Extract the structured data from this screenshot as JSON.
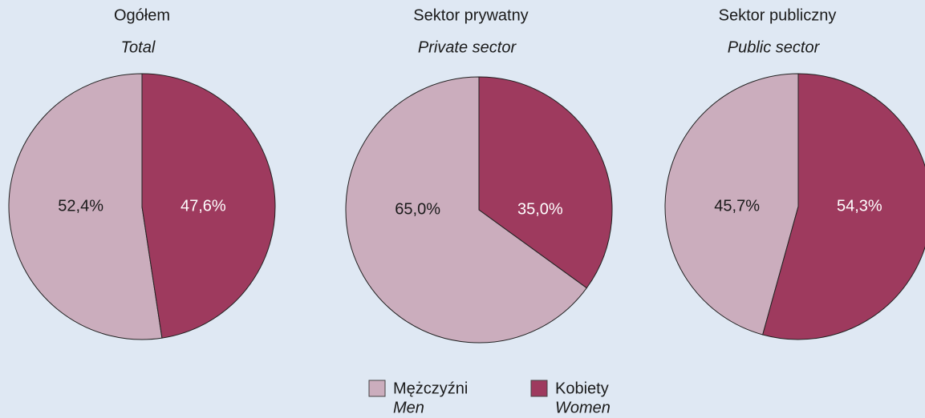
{
  "chart_data": [
    {
      "type": "pie",
      "title": "Ogółem",
      "subtitle": "Total",
      "values": [
        52.4,
        47.6
      ],
      "value_labels": [
        "52,4%",
        "47,6%"
      ]
    },
    {
      "type": "pie",
      "title": "Sektor prywatny",
      "subtitle": "Private sector",
      "values": [
        65.0,
        35.0
      ],
      "value_labels": [
        "65,0%",
        "35,0%"
      ]
    },
    {
      "type": "pie",
      "title": "Sektor publiczny",
      "subtitle": "Public sector",
      "values": [
        45.7,
        54.3
      ],
      "value_labels": [
        "45,7%",
        "54,3%"
      ]
    }
  ],
  "legend": {
    "items": [
      {
        "name": "Mężczyźni",
        "name_en": "Men",
        "color": "#cbadbd"
      },
      {
        "name": "Kobiety",
        "name_en": "Women",
        "color": "#9e3a5e"
      }
    ]
  }
}
